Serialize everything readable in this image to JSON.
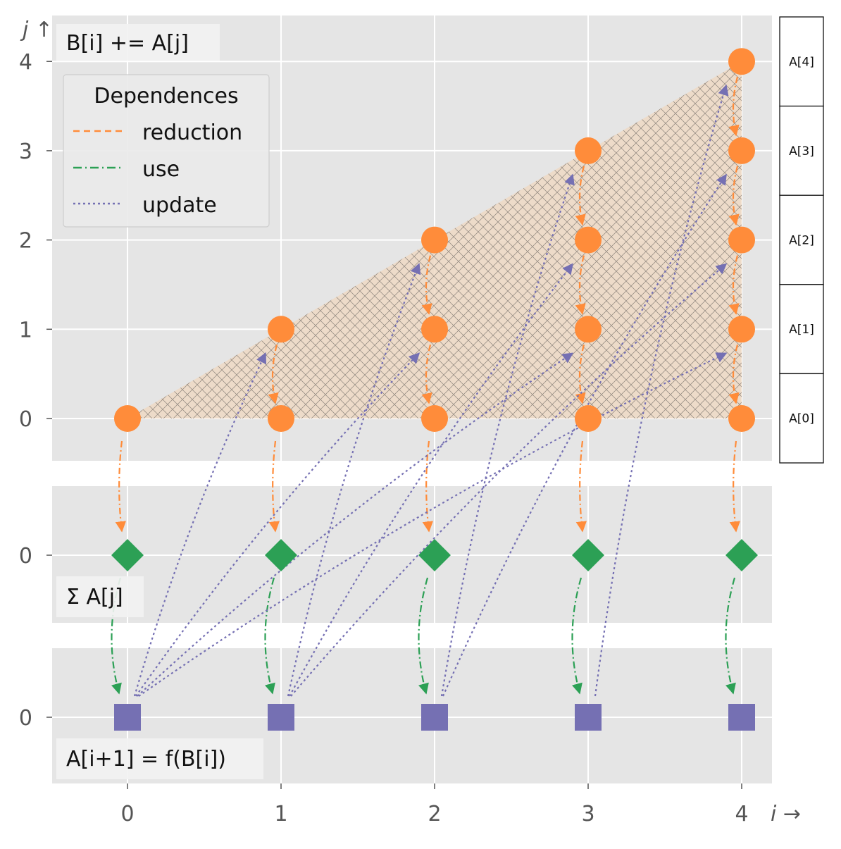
{
  "chart_data": {
    "type": "diagram",
    "title": "",
    "colors": {
      "reduction": "#ff8c3a",
      "use": "#2ca055",
      "update": "#7570b3",
      "panel_bg": "#e5e5e5",
      "grid": "#ffffff",
      "fill": "#efd9c4"
    },
    "x_ticks": [
      "0",
      "1",
      "2",
      "3",
      "4"
    ],
    "x_label": "i →",
    "panels": {
      "top": {
        "label": "B[i] += A[j]",
        "y_ticks": [
          "0",
          "1",
          "2",
          "3",
          "4"
        ],
        "y_label": "j ↑"
      },
      "middle": {
        "label": "Σ A[j]",
        "y_ticks": [
          "0"
        ]
      },
      "bottom": {
        "label": "A[i+1] = f(B[i])",
        "y_ticks": [
          "0"
        ]
      }
    },
    "points": {
      "reduction_circles": [
        [
          0,
          0
        ],
        [
          1,
          0
        ],
        [
          1,
          1
        ],
        [
          2,
          0
        ],
        [
          2,
          1
        ],
        [
          2,
          2
        ],
        [
          3,
          0
        ],
        [
          3,
          1
        ],
        [
          3,
          2
        ],
        [
          3,
          3
        ],
        [
          4,
          0
        ],
        [
          4,
          1
        ],
        [
          4,
          2
        ],
        [
          4,
          3
        ],
        [
          4,
          4
        ]
      ],
      "sum_diamonds": [
        0,
        1,
        2,
        3,
        4
      ],
      "update_squares": [
        0,
        1,
        2,
        3,
        4
      ]
    },
    "legend": {
      "title": "Dependences",
      "entries": [
        {
          "label": "reduction",
          "style": "dashed",
          "color": "#ff8c3a"
        },
        {
          "label": "use",
          "style": "dashdot",
          "color": "#2ca055"
        },
        {
          "label": "update",
          "style": "dotted",
          "color": "#7570b3"
        }
      ]
    },
    "array_cells": [
      "A[4]",
      "A[3]",
      "A[2]",
      "A[1]",
      "A[0]"
    ]
  }
}
